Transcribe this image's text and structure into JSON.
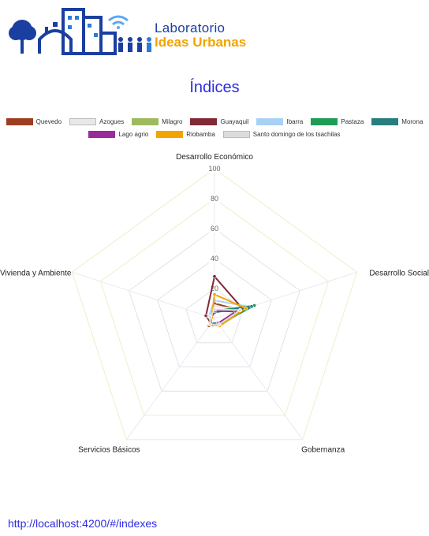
{
  "header": {
    "logo_line1": "Laboratorio",
    "logo_line2": "Ideas Urbanas"
  },
  "page": {
    "title": "Índices",
    "url": "http://localhost:4200/#/indexes"
  },
  "colors": {
    "logo_blue": "#1b3fa0",
    "logo_orange": "#f2a400",
    "title": "#2d2de0"
  },
  "chart_data": {
    "type": "radar",
    "axes": [
      "Desarrollo Económico",
      "Desarrollo Social",
      "Gobernanza",
      "Servicios Básicos",
      "Vivienda y Ambiente"
    ],
    "ticks": [
      20,
      40,
      60,
      80,
      100
    ],
    "tick_labels": [
      "20",
      "40",
      "60",
      "80",
      "100"
    ],
    "range": [
      0,
      100
    ],
    "legend_position": "top",
    "series": [
      {
        "name": "Quevedo",
        "color": "#9e3d22",
        "values": [
          10,
          18,
          5,
          6,
          3
        ]
      },
      {
        "name": "Azogues",
        "color": "#e8e8e8",
        "values": [
          8,
          20,
          6,
          5,
          4
        ]
      },
      {
        "name": "Milagro",
        "color": "#9dba5f",
        "values": [
          6,
          16,
          4,
          4,
          2
        ]
      },
      {
        "name": "Guayaquil",
        "color": "#822a36",
        "values": [
          28,
          20,
          5,
          4,
          6
        ]
      },
      {
        "name": "Ibarra",
        "color": "#a9d0f5",
        "values": [
          12,
          25,
          6,
          4,
          4
        ]
      },
      {
        "name": "Pastaza",
        "color": "#1f9d55",
        "values": [
          5,
          28,
          5,
          5,
          3
        ]
      },
      {
        "name": "Morona",
        "color": "#277e7f",
        "values": [
          4,
          26,
          4,
          4,
          3
        ]
      },
      {
        "name": "Lago agrio",
        "color": "#9b2a9b",
        "values": [
          5,
          15,
          4,
          5,
          2
        ]
      },
      {
        "name": "Riobamba",
        "color": "#f2a400",
        "values": [
          16,
          22,
          6,
          5,
          2
        ]
      },
      {
        "name": "Santo domingo de los tsachilas",
        "color": "#dcdcdc",
        "values": [
          6,
          18,
          5,
          5,
          3
        ]
      }
    ]
  }
}
